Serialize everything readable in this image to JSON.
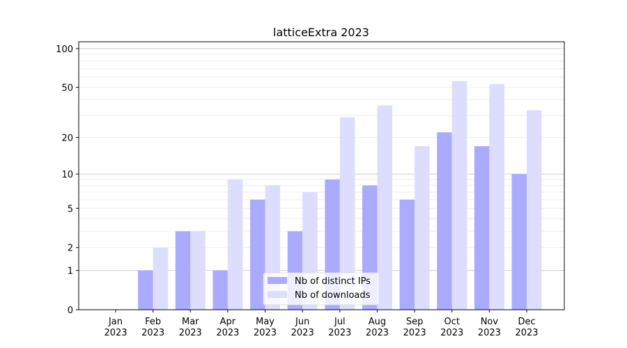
{
  "chart_data": {
    "type": "bar",
    "title": "latticeExtra 2023",
    "xlabel": "",
    "ylabel": "",
    "yscale": "log10(1+y)",
    "ylim": [
      0,
      113
    ],
    "yticks": [
      0,
      1,
      2,
      5,
      10,
      20,
      50,
      100
    ],
    "categories": [
      "Jan\n2023",
      "Feb\n2023",
      "Mar\n2023",
      "Apr\n2023",
      "May\n2023",
      "Jun\n2023",
      "Jul\n2023",
      "Aug\n2023",
      "Sep\n2023",
      "Oct\n2023",
      "Nov\n2023",
      "Dec\n2023"
    ],
    "series": [
      {
        "name": "Nb of distinct IPs",
        "color": "#aaaaff",
        "values": [
          0,
          1,
          3,
          1,
          6,
          3,
          9,
          8,
          6,
          22,
          17,
          10
        ]
      },
      {
        "name": "Nb of downloads",
        "color": "#ddddff",
        "values": [
          0,
          2,
          3,
          9,
          8,
          7,
          29,
          36,
          17,
          56,
          53,
          33
        ]
      }
    ],
    "grid": true,
    "legend": "lower-center"
  }
}
